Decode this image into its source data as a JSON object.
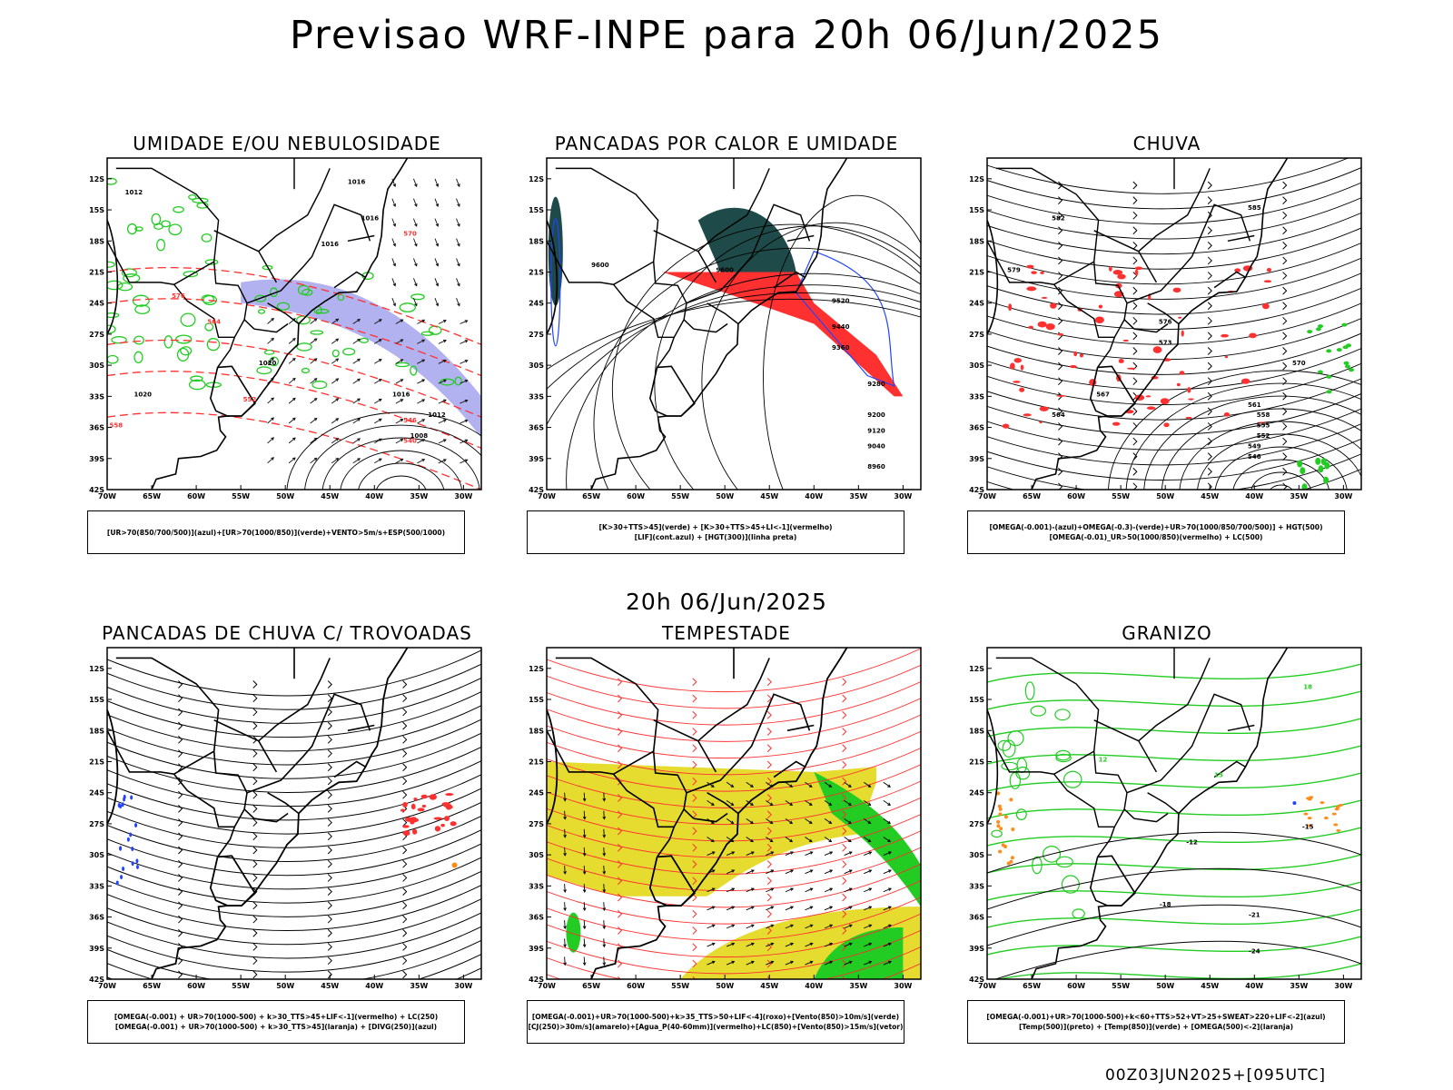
{
  "title": "Previsao WRF-INPE  para 20h 06/Jun/2025",
  "mid_date": "20h 06/Jun/2025",
  "footer_run": "00Z03JUN2025+[095UTC]",
  "axes": {
    "lat_labels": [
      "12S",
      "15S",
      "18S",
      "21S",
      "24S",
      "27S",
      "30S",
      "33S",
      "36S",
      "39S",
      "42S"
    ],
    "lon_labels": [
      "70W",
      "65W",
      "60W",
      "55W",
      "50W",
      "45W",
      "40W",
      "35W",
      "30W"
    ]
  },
  "panels": [
    {
      "id": "umidade",
      "title": "UMIDADE E/OU NEBULOSIDADE",
      "legend": [
        "[UR>70(850/700/500)](azul)+[UR>70(1000/850)](verde)+VENTO>5m/s+ESP(500/1000)"
      ],
      "contour_labels": [
        "1012",
        "1016",
        "1016",
        "1016",
        "1020",
        "1016",
        "1020",
        "1012",
        "1008",
        "570",
        "564",
        "558",
        "552",
        "546",
        "540",
        "576"
      ]
    },
    {
      "id": "pancadas-calor",
      "title": "PANCADAS POR CALOR E UMIDADE",
      "legend": [
        "[K>30+TTS>45](verde) + [K>30+TTS>45+LI<-1](vermelho)",
        "[LIF](cont.azul) + [HGT(300)](linha preta)"
      ],
      "contour_labels": [
        "9600",
        "9520",
        "9440",
        "9360",
        "9280",
        "9200",
        "9120",
        "9040",
        "8960"
      ]
    },
    {
      "id": "chuva",
      "title": "CHUVA",
      "legend": [
        "[OMEGA(-0.001)-(azul)+OMEGA(-0.3)-(verde)+UR>70(1000/850/700/500)] + HGT(500)",
        "[OMEGA(-0.01)_UR>50(1000/850)(vermelho) + LC(500)"
      ],
      "contour_labels": [
        "585",
        "582",
        "579",
        "576",
        "573",
        "570",
        "567",
        "564",
        "561",
        "558",
        "555",
        "552",
        "549",
        "546"
      ]
    },
    {
      "id": "pancadas-trovoadas",
      "title": "PANCADAS DE CHUVA C/ TROVOADAS",
      "legend": [
        "[OMEGA(-0.001) + UR>70(1000-500) + k>30_TTS>45+LIF<-1](vermelho) + LC(250)",
        "[OMEGA(-0.001) + UR>70(1000-500) + k>30_TTS>45](laranja) + [DIVG(250)](azul)"
      ]
    },
    {
      "id": "tempestade",
      "title": "TEMPESTADE",
      "legend": [
        "[OMEGA(-0.001)+UR>70(1000-500)+k>35_TTS>50+LIF<-4](roxo)+[Vento(850)>10m/s](verde)",
        "[CJ(250)>30m/s](amarelo)+[Agua_P(40-60mm)](vermelho)+LC(850)+[Vento(850)>15m/s](vetor)"
      ]
    },
    {
      "id": "granizo",
      "title": "GRANIZO",
      "legend": [
        "[OMEGA(-0.001)+UR>70(1000-500)+k<60+TTS>52+VT>25+SWEAT>220+LIF<-2](azul)",
        "[Temp(500)](preto) + [Temp(850)](verde) + [OMEGA(500)<-2](laranja)"
      ],
      "contour_labels": [
        "-12",
        "-15",
        "-18",
        "-21",
        "-24",
        "15",
        "18",
        "12"
      ]
    }
  ],
  "colors": {
    "red": "#ff3030",
    "green": "#22cc22",
    "blue": "#2244ff",
    "lavender": "#aaaaee",
    "teal": "#1e4a4a",
    "yellow": "#e6dc30",
    "orange": "#ff8c1a"
  }
}
